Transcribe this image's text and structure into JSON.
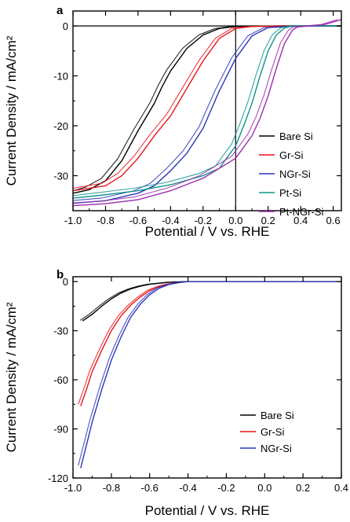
{
  "chart_data": [
    {
      "type": "line",
      "panel_label": "a",
      "xlabel": "Potential / V vs. RHE",
      "ylabel": "Current Density / mA/cm²",
      "xlim": [
        -1.0,
        0.65
      ],
      "ylim": [
        -37,
        3
      ],
      "x_ticks": [
        -1.0,
        -0.8,
        -0.6,
        -0.4,
        -0.2,
        0.0,
        0.2,
        0.4,
        0.6
      ],
      "x_tick_labels": [
        "-1.0",
        "-0.8",
        "-0.6",
        "-0.4",
        "-0.2",
        "0.0",
        "0.2",
        "0.4",
        "0.6"
      ],
      "y_ticks": [
        0,
        -10,
        -20,
        -30
      ],
      "y_tick_labels": [
        "0",
        "-10",
        "-20",
        "-30"
      ],
      "reference_lines": {
        "y": 0,
        "x": 0.0
      },
      "legend_position": "bottom-right",
      "grid": false,
      "series": [
        {
          "name": "Bare Si",
          "color": "#000000",
          "x": [
            -1.0,
            -0.9,
            -0.8,
            -0.7,
            -0.6,
            -0.5,
            -0.45,
            -0.4,
            -0.3,
            -0.2,
            -0.1,
            0.0,
            0.3,
            0.65
          ],
          "y": [
            -33.5,
            -32.8,
            -31.0,
            -27.0,
            -21.0,
            -15.5,
            -12.0,
            -9.0,
            -4.5,
            -1.8,
            -0.5,
            -0.1,
            0.0,
            0.0
          ]
        },
        {
          "name": "Gr-Si",
          "color": "#e8141b",
          "x": [
            -1.0,
            -0.8,
            -0.7,
            -0.6,
            -0.5,
            -0.4,
            -0.3,
            -0.2,
            -0.1,
            0.0,
            0.1,
            0.3,
            0.65
          ],
          "y": [
            -33.0,
            -32.0,
            -30.0,
            -26.5,
            -22.0,
            -18.0,
            -12.5,
            -7.0,
            -2.5,
            -0.5,
            -0.1,
            0.0,
            0.0
          ]
        },
        {
          "name": "NGr-Si",
          "color": "#2a36b8",
          "x": [
            -1.0,
            -0.8,
            -0.6,
            -0.5,
            -0.4,
            -0.3,
            -0.2,
            -0.1,
            0.0,
            0.1,
            0.2,
            0.4,
            0.65
          ],
          "y": [
            -35.5,
            -35.0,
            -33.5,
            -32.0,
            -29.0,
            -25.5,
            -20.5,
            -13.0,
            -6.5,
            -2.0,
            -0.3,
            0.0,
            0.0
          ]
        },
        {
          "name": "Pt-Si",
          "color": "#0e948c",
          "x": [
            -1.0,
            -0.8,
            -0.6,
            -0.4,
            -0.2,
            -0.1,
            0.0,
            0.05,
            0.1,
            0.15,
            0.2,
            0.25,
            0.3,
            0.35,
            0.5,
            0.65
          ],
          "y": [
            -34.5,
            -33.8,
            -33.0,
            -31.8,
            -30.0,
            -28.5,
            -24.0,
            -20.0,
            -15.5,
            -10.0,
            -5.0,
            -1.8,
            -0.4,
            0.0,
            0.0,
            0.0
          ]
        },
        {
          "name": "Pt-NGr-Si",
          "color": "#9b2fae",
          "x": [
            -1.0,
            -0.8,
            -0.6,
            -0.4,
            -0.2,
            0.0,
            0.1,
            0.15,
            0.2,
            0.25,
            0.3,
            0.35,
            0.38,
            0.45,
            0.55,
            0.65
          ],
          "y": [
            -36.0,
            -35.6,
            -34.8,
            -33.0,
            -30.5,
            -26.5,
            -22.0,
            -18.5,
            -14.0,
            -8.5,
            -3.5,
            -0.8,
            -0.2,
            0.0,
            0.3,
            1.3
          ]
        }
      ]
    },
    {
      "type": "line",
      "panel_label": "b",
      "xlabel": "Potential / V vs. RHE",
      "ylabel": "Current Density / mA/cm²",
      "xlim": [
        -1.0,
        0.4
      ],
      "ylim": [
        -120,
        3
      ],
      "x_ticks": [
        -1.0,
        -0.8,
        -0.6,
        -0.4,
        -0.2,
        0.0,
        0.2,
        0.4
      ],
      "x_tick_labels": [
        "-1.0",
        "-0.8",
        "-0.6",
        "-0.4",
        "-0.2",
        "0.0",
        "0.2",
        "0.4"
      ],
      "y_ticks": [
        0,
        -30,
        -60,
        -90,
        -120
      ],
      "y_tick_labels": [
        "0",
        "-30",
        "-60",
        "-90",
        "-120"
      ],
      "legend_position": "bottom-right",
      "grid": false,
      "series": [
        {
          "name": "Bare Si",
          "color": "#000000",
          "x": [
            -0.95,
            -0.9,
            -0.85,
            -0.8,
            -0.75,
            -0.7,
            -0.65,
            -0.6,
            -0.5,
            -0.4,
            0.0,
            0.4
          ],
          "y": [
            -24.0,
            -20.0,
            -15.0,
            -10.5,
            -7.0,
            -4.5,
            -2.8,
            -1.6,
            -0.4,
            0.0,
            0.0,
            0.0
          ]
        },
        {
          "name": "Gr-Si",
          "color": "#e8141b",
          "x": [
            -0.96,
            -0.93,
            -0.9,
            -0.85,
            -0.8,
            -0.75,
            -0.7,
            -0.65,
            -0.6,
            -0.55,
            -0.5,
            -0.45,
            -0.4,
            0.0,
            0.4
          ],
          "y": [
            -76.0,
            -66.0,
            -55.0,
            -42.0,
            -30.0,
            -21.0,
            -14.5,
            -9.5,
            -5.5,
            -3.0,
            -1.5,
            -0.6,
            0.0,
            0.0,
            0.0
          ]
        },
        {
          "name": "NGr-Si",
          "color": "#2a36b8",
          "x": [
            -0.96,
            -0.93,
            -0.9,
            -0.85,
            -0.8,
            -0.75,
            -0.7,
            -0.65,
            -0.6,
            -0.55,
            -0.5,
            -0.45,
            -0.4,
            0.0,
            0.4
          ],
          "y": [
            -114.0,
            -100.0,
            -86.0,
            -66.0,
            -48.0,
            -34.0,
            -22.0,
            -14.0,
            -8.0,
            -4.0,
            -1.8,
            -0.6,
            0.0,
            0.0,
            0.0
          ]
        }
      ]
    }
  ]
}
